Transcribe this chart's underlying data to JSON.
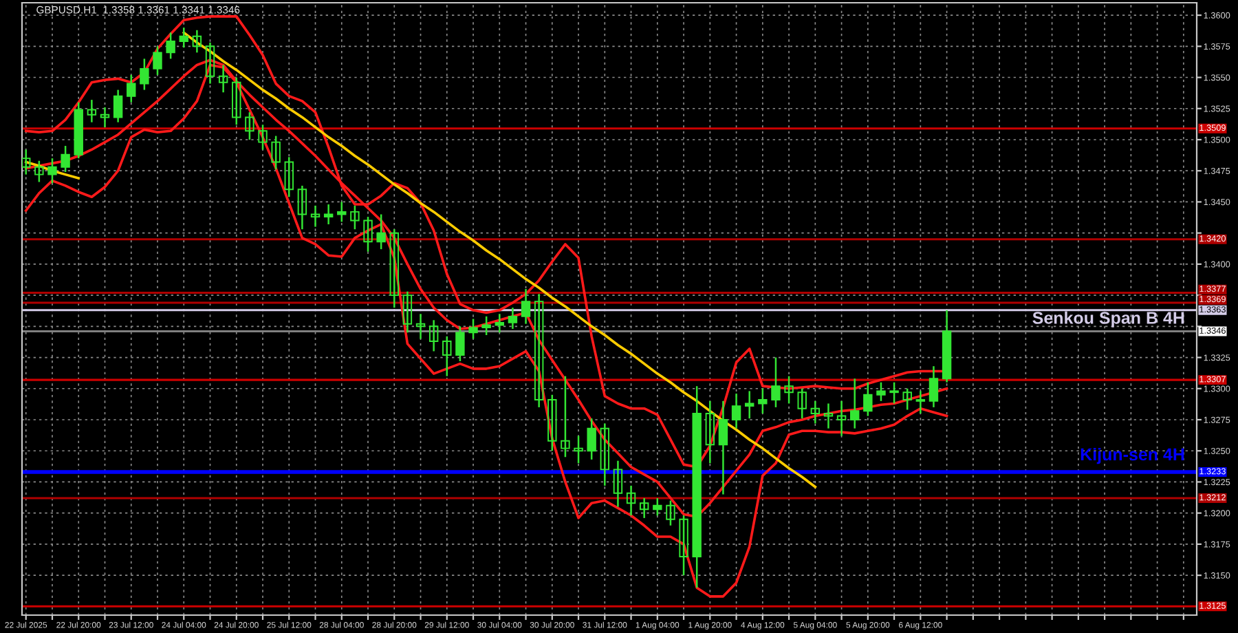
{
  "chart_data": {
    "type": "candlestick",
    "title": "GBPUSD.H1  1.3358 1.3361 1.3341 1.3346",
    "categories": [
      "22 Jul 2025",
      null,
      null,
      null,
      "22 Jul 20:00",
      null,
      null,
      null,
      "23 Jul 12:00",
      null,
      null,
      null,
      "24 Jul 04:00",
      null,
      null,
      null,
      "24 Jul 20:00",
      null,
      null,
      null,
      "25 Jul 12:00",
      null,
      null,
      null,
      "28 Jul 04:00",
      null,
      null,
      null,
      "28 Jul 20:00",
      null,
      null,
      null,
      "29 Jul 12:00",
      null,
      null,
      null,
      "30 Jul 04:00",
      null,
      null,
      null,
      "30 Jul 20:00",
      null,
      null,
      null,
      "31 Jul 12:00",
      null,
      null,
      null,
      "1 Aug 04:00",
      null,
      null,
      null,
      "1 Aug 20:00",
      null,
      null,
      null,
      "4 Aug 12:00",
      null,
      null,
      null,
      "5 Aug 04:00",
      null,
      null,
      null,
      "5 Aug 20:00",
      null,
      null,
      null,
      "6 Aug 12:00",
      null,
      null,
      null,
      null,
      null,
      null,
      null,
      null,
      null,
      null,
      null,
      null,
      null,
      null,
      null,
      null,
      null,
      null,
      null,
      null
    ],
    "ylim": [
      1.3118,
      1.361
    ],
    "grid": true,
    "yticks": [
      {
        "value": 1.315,
        "label": "1.3150"
      },
      {
        "value": 1.3175,
        "label": "1.3175"
      },
      {
        "value": 1.32,
        "label": "1.3200"
      },
      {
        "value": 1.3225,
        "label": "1.3225"
      },
      {
        "value": 1.325,
        "label": "1.3250"
      },
      {
        "value": 1.3275,
        "label": "1.3275"
      },
      {
        "value": 1.33,
        "label": "1.3300"
      },
      {
        "value": 1.3325,
        "label": "1.3325"
      },
      {
        "value": 1.335,
        "label": null
      },
      {
        "value": 1.3375,
        "label": null
      },
      {
        "value": 1.34,
        "label": "1.3400"
      },
      {
        "value": 1.3425,
        "label": null
      },
      {
        "value": 1.345,
        "label": "1.3450"
      },
      {
        "value": 1.3475,
        "label": "1.3475"
      },
      {
        "value": 1.35,
        "label": "1.3500"
      },
      {
        "value": 1.3525,
        "label": "1.3525"
      },
      {
        "value": 1.355,
        "label": "1.3550"
      },
      {
        "value": 1.3575,
        "label": "1.3575"
      },
      {
        "value": 1.36,
        "label": "1.3600"
      }
    ],
    "series": [
      {
        "color": "#33e633",
        "ohlc": [
          [
            1.3485,
            1.3492,
            1.3472,
            1.3478
          ],
          [
            1.3478,
            1.3483,
            1.3466,
            1.3472
          ],
          [
            1.3472,
            1.3485,
            1.3465,
            1.3478
          ],
          [
            1.3478,
            1.3495,
            1.3474,
            1.3488
          ],
          [
            1.3488,
            1.353,
            1.3485,
            1.3524
          ],
          [
            1.3524,
            1.3532,
            1.3514,
            1.352
          ],
          [
            1.352,
            1.3526,
            1.351,
            1.3518
          ],
          [
            1.3518,
            1.354,
            1.3514,
            1.3535
          ],
          [
            1.3535,
            1.3552,
            1.353,
            1.3545
          ],
          [
            1.3545,
            1.3565,
            1.354,
            1.3557
          ],
          [
            1.3557,
            1.3575,
            1.3552,
            1.357
          ],
          [
            1.357,
            1.3586,
            1.3565,
            1.3579
          ],
          [
            1.3579,
            1.359,
            1.3574,
            1.3583
          ],
          [
            1.3583,
            1.3588,
            1.357,
            1.3575
          ],
          [
            1.3575,
            1.3578,
            1.3545,
            1.3551
          ],
          [
            1.3551,
            1.356,
            1.3538,
            1.3546
          ],
          [
            1.3546,
            1.355,
            1.3512,
            1.3518
          ],
          [
            1.3518,
            1.3522,
            1.35,
            1.3507
          ],
          [
            1.3507,
            1.3512,
            1.3492,
            1.3498
          ],
          [
            1.3498,
            1.3503,
            1.3476,
            1.3482
          ],
          [
            1.3482,
            1.3486,
            1.3454,
            1.346
          ],
          [
            1.346,
            1.3463,
            1.3428,
            1.344
          ],
          [
            1.344,
            1.3447,
            1.343,
            1.3438
          ],
          [
            1.3438,
            1.3448,
            1.3432,
            1.344
          ],
          [
            1.344,
            1.345,
            1.3434,
            1.3442
          ],
          [
            1.3442,
            1.3447,
            1.3428,
            1.3435
          ],
          [
            1.3435,
            1.3438,
            1.341,
            1.3418
          ],
          [
            1.3418,
            1.344,
            1.3412,
            1.3425
          ],
          [
            1.3425,
            1.3428,
            1.3365,
            1.3375
          ],
          [
            1.3375,
            1.3378,
            1.3345,
            1.3352
          ],
          [
            1.3352,
            1.336,
            1.334,
            1.335
          ],
          [
            1.335,
            1.3355,
            1.333,
            1.3338
          ],
          [
            1.3338,
            1.3342,
            1.331,
            1.3327
          ],
          [
            1.3327,
            1.335,
            1.3322,
            1.3345
          ],
          [
            1.3345,
            1.3356,
            1.334,
            1.3349
          ],
          [
            1.3349,
            1.3358,
            1.3343,
            1.3351
          ],
          [
            1.3351,
            1.336,
            1.3345,
            1.3353
          ],
          [
            1.3353,
            1.3365,
            1.3348,
            1.3358
          ],
          [
            1.3358,
            1.338,
            1.3352,
            1.337
          ],
          [
            1.337,
            1.3376,
            1.3285,
            1.3291
          ],
          [
            1.3291,
            1.3295,
            1.325,
            1.3258
          ],
          [
            1.3258,
            1.331,
            1.3245,
            1.3252
          ],
          [
            1.3252,
            1.3262,
            1.324,
            1.325
          ],
          [
            1.325,
            1.3276,
            1.3243,
            1.3268
          ],
          [
            1.3268,
            1.3272,
            1.3222,
            1.3235
          ],
          [
            1.3235,
            1.3242,
            1.3205,
            1.3216
          ],
          [
            1.3216,
            1.3222,
            1.3198,
            1.3208
          ],
          [
            1.3208,
            1.3212,
            1.3196,
            1.3203
          ],
          [
            1.3203,
            1.3212,
            1.3198,
            1.3206
          ],
          [
            1.3206,
            1.321,
            1.319,
            1.3195
          ],
          [
            1.3195,
            1.3198,
            1.315,
            1.3165
          ],
          [
            1.3165,
            1.3302,
            1.314,
            1.328
          ],
          [
            1.328,
            1.329,
            1.324,
            1.3255
          ],
          [
            1.3255,
            1.329,
            1.3215,
            1.3275
          ],
          [
            1.3275,
            1.3296,
            1.3268,
            1.3286
          ],
          [
            1.3286,
            1.3298,
            1.3276,
            1.3288
          ],
          [
            1.3288,
            1.33,
            1.328,
            1.3291
          ],
          [
            1.3291,
            1.3325,
            1.3285,
            1.3302
          ],
          [
            1.3302,
            1.331,
            1.3288,
            1.3297
          ],
          [
            1.3297,
            1.33,
            1.3276,
            1.3284
          ],
          [
            1.3284,
            1.329,
            1.3272,
            1.328
          ],
          [
            1.328,
            1.3288,
            1.3268,
            1.3278
          ],
          [
            1.3278,
            1.329,
            1.3262,
            1.3275
          ],
          [
            1.3275,
            1.3308,
            1.3268,
            1.3282
          ],
          [
            1.3282,
            1.3305,
            1.3278,
            1.3295
          ],
          [
            1.3295,
            1.3305,
            1.329,
            1.3298
          ],
          [
            1.3298,
            1.3305,
            1.3288,
            1.3297
          ],
          [
            1.3297,
            1.33,
            1.3283,
            1.3291
          ],
          [
            1.3291,
            1.3298,
            1.328,
            1.329
          ],
          [
            1.329,
            1.3318,
            1.3285,
            1.3308
          ],
          [
            1.3308,
            1.3363,
            1.3305,
            1.3346
          ],
          null,
          null,
          null,
          null,
          null,
          null,
          null,
          null,
          null,
          null,
          null,
          null,
          null,
          null,
          null,
          null,
          null,
          null
        ]
      },
      {
        "type": "line",
        "color": "#ff1a1a",
        "values": [
          1.3507,
          1.3506,
          1.3507,
          1.3516,
          1.353,
          1.3546,
          1.3548,
          1.3549,
          1.3546,
          1.3554,
          1.3573,
          1.3585,
          1.3596,
          1.3598,
          1.3599,
          1.3599,
          1.3599,
          1.3584,
          1.3568,
          1.3545,
          1.3535,
          1.3531,
          1.3522,
          1.3494,
          1.3463,
          1.3448,
          1.3448,
          1.3455,
          1.3465,
          1.3461,
          1.3449,
          1.3427,
          1.3392,
          1.3368,
          1.3363,
          1.3361,
          1.3363,
          1.3369,
          1.3376,
          1.3387,
          1.3402,
          1.3416,
          1.3405,
          1.3342,
          1.3294,
          1.3288,
          1.3284,
          1.3284,
          1.3279,
          1.3259,
          1.3239,
          1.3237,
          1.3254,
          1.3285,
          1.3321,
          1.3332,
          1.3302,
          1.3301,
          1.33,
          1.3301,
          1.3302,
          1.3301,
          1.33,
          1.33,
          1.3304,
          1.3307,
          1.331,
          1.3313,
          1.3314,
          1.3314,
          1.3314,
          null,
          null,
          null,
          null,
          null,
          null,
          null,
          null,
          null,
          null,
          null,
          null,
          null,
          null,
          null,
          null,
          null,
          null
        ]
      },
      {
        "type": "line",
        "color": "#ff1a1a",
        "values": [
          1.3477,
          1.3479,
          1.3481,
          1.3483,
          1.3487,
          1.3492,
          1.3498,
          1.3504,
          1.3513,
          1.3522,
          1.3531,
          1.3541,
          1.3551,
          1.356,
          1.3564,
          1.356,
          1.3547,
          1.3536,
          1.3526,
          1.3516,
          1.3507,
          1.3497,
          1.3487,
          1.3476,
          1.3465,
          1.3455,
          1.3445,
          1.3435,
          1.3421,
          1.34,
          1.338,
          1.3365,
          1.3355,
          1.3348,
          1.3349,
          1.3352,
          1.3355,
          1.3358,
          1.3361,
          1.3339,
          1.3323,
          1.3307,
          1.3291,
          1.3274,
          1.3259,
          1.3248,
          1.3237,
          1.3231,
          1.3225,
          1.3212,
          1.3199,
          1.3197,
          1.3208,
          1.3221,
          1.3234,
          1.3247,
          1.3266,
          1.3269,
          1.3273,
          1.3275,
          1.3278,
          1.328,
          1.3282,
          1.3283,
          1.3285,
          1.3287,
          1.3288,
          1.3291,
          1.3294,
          1.3297,
          1.33,
          null,
          null,
          null,
          null,
          null,
          null,
          null,
          null,
          null,
          null,
          null,
          null,
          null,
          null,
          null,
          null,
          null,
          null
        ]
      },
      {
        "type": "line",
        "color": "#ff1a1a",
        "values": [
          1.3443,
          1.3457,
          1.3467,
          1.3463,
          1.3458,
          1.3454,
          1.3462,
          1.3475,
          1.3502,
          1.3508,
          1.3506,
          1.3507,
          1.3517,
          1.3531,
          1.356,
          1.3558,
          1.3546,
          1.3524,
          1.3502,
          1.3477,
          1.3449,
          1.3421,
          1.3416,
          1.3407,
          1.3406,
          1.3421,
          1.3427,
          1.3432,
          1.3405,
          1.3336,
          1.3324,
          1.3312,
          1.3316,
          1.332,
          1.3316,
          1.3316,
          1.3318,
          1.3324,
          1.333,
          1.3314,
          1.326,
          1.3225,
          1.3196,
          1.3208,
          1.321,
          1.3204,
          1.3198,
          1.319,
          1.3181,
          1.3181,
          1.3175,
          1.314,
          1.3133,
          1.3133,
          1.3144,
          1.3173,
          1.323,
          1.324,
          1.3263,
          1.3266,
          1.3266,
          1.3265,
          1.3265,
          1.3264,
          1.3266,
          1.3268,
          1.3271,
          1.3278,
          1.3284,
          1.3281,
          1.3278,
          null,
          null,
          null,
          null,
          null,
          null,
          null,
          null,
          null,
          null,
          null,
          null,
          null,
          null,
          null,
          null,
          null,
          null
        ]
      },
      {
        "type": "line",
        "color": "#ffcc00",
        "values": [
          1.3482,
          1.3479,
          1.3475,
          1.3472,
          1.3469,
          null,
          null,
          null,
          null,
          null,
          null,
          null,
          null,
          null,
          null,
          null,
          null,
          null,
          null,
          null,
          null,
          null,
          null,
          null,
          null,
          null,
          null,
          null,
          null,
          null,
          null,
          null,
          null,
          null,
          null,
          null,
          null,
          null,
          null,
          null,
          null,
          null,
          null,
          null,
          null,
          null,
          null,
          null,
          null,
          null,
          null,
          null,
          null,
          null,
          null,
          null,
          null,
          null,
          null,
          null,
          null,
          null,
          null,
          null,
          null,
          null,
          null,
          null,
          null,
          null,
          null,
          null,
          null,
          null,
          null,
          null,
          null,
          null,
          null,
          null,
          null,
          null,
          null,
          null,
          null,
          null,
          null,
          null,
          null
        ]
      },
      {
        "type": "line",
        "color": "#ffcc00",
        "values": [
          null,
          null,
          null,
          null,
          null,
          null,
          null,
          null,
          null,
          null,
          null,
          null,
          1.3586,
          1.3578,
          1.3571,
          1.3563,
          1.3556,
          1.3548,
          1.354,
          1.3533,
          1.3525,
          1.3518,
          1.351,
          1.3502,
          1.3495,
          1.3487,
          1.348,
          1.3472,
          1.3464,
          1.3457,
          1.3449,
          1.3442,
          1.3434,
          1.3426,
          1.3419,
          1.3411,
          1.3404,
          1.3396,
          1.3388,
          1.3381,
          1.3373,
          1.3366,
          1.3358,
          1.335,
          1.3343,
          1.3335,
          1.3328,
          1.332,
          1.3312,
          1.3305,
          1.3297,
          1.329,
          1.3282,
          1.3274,
          1.3267,
          1.3259,
          1.3252,
          1.3244,
          1.3236,
          1.3229,
          1.3221,
          null,
          null,
          null,
          null,
          null,
          null,
          null,
          null,
          null,
          null,
          null,
          null,
          null,
          null,
          null,
          null,
          null,
          null,
          null,
          null,
          null,
          null,
          null,
          null,
          null,
          null,
          null,
          null
        ]
      }
    ],
    "ref_lines": [
      {
        "axis": "y",
        "value": 1.3509,
        "label": "1.3509",
        "color": "#cc0000"
      },
      {
        "axis": "y",
        "value": 1.342,
        "label": "1.3420",
        "color": "#b00000"
      },
      {
        "axis": "y",
        "value": 1.3377,
        "label": "1.3377",
        "color": "#b00000"
      },
      {
        "axis": "y",
        "value": 1.3369,
        "label": "1.3369",
        "color": "#b00000"
      },
      {
        "axis": "y",
        "value": 1.3363,
        "label": "1.3363",
        "color": "#d4cce8"
      },
      {
        "axis": "y",
        "value": 1.3346,
        "label": "1.3346",
        "color": "#808080"
      },
      {
        "axis": "y",
        "value": 1.3307,
        "label": "1.3307",
        "color": "#cc0000"
      },
      {
        "axis": "y",
        "value": 1.3233,
        "label": "1.3233",
        "color": "#0000ff"
      },
      {
        "axis": "y",
        "value": 1.3212,
        "label": "1.3212",
        "color": "#b00000"
      },
      {
        "axis": "y",
        "value": 1.3125,
        "label": "1.3125",
        "color": "#cc0000"
      }
    ],
    "annotations": [
      "Senkou Span B 4H",
      "Kijun-sen 4H"
    ]
  }
}
